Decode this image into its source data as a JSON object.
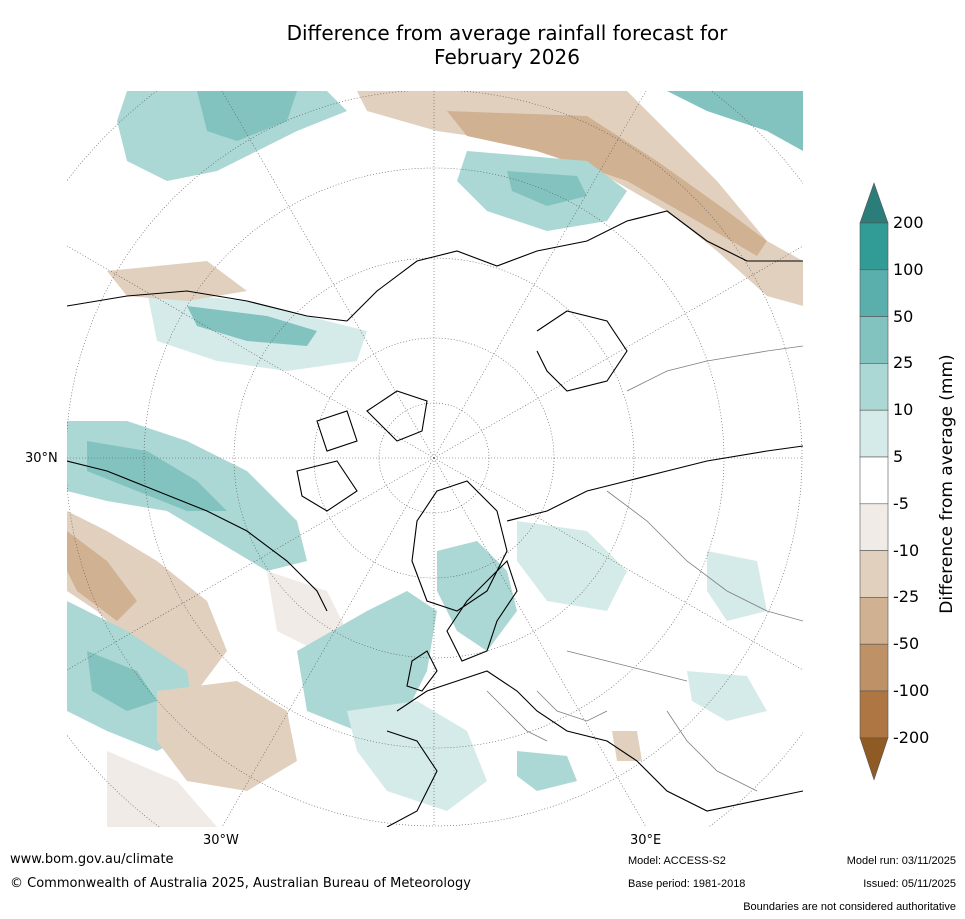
{
  "title": {
    "line1": "Difference from average rainfall forecast for",
    "line2": "February 2026"
  },
  "map": {
    "projection": "north polar stereographic",
    "graticule_labels": {
      "lon_left": "30°W",
      "lon_right": "30°E",
      "lat": "30°N"
    },
    "colors": {
      "ocean_background": "#ffffff",
      "coastline": "#000000",
      "borders": "#7f7f7f",
      "graticule": "#555555"
    }
  },
  "legend": {
    "title": "Difference from average (mm)",
    "tick_labels": [
      "200",
      "100",
      "50",
      "25",
      "10",
      "5",
      "-5",
      "-10",
      "-25",
      "-50",
      "-100",
      "-200"
    ],
    "bins": [
      {
        "range": "> 200",
        "color": "#2a7d79"
      },
      {
        "range": "100 to 200",
        "color": "#319b96"
      },
      {
        "range": "50 to 100",
        "color": "#5aaeab"
      },
      {
        "range": "25 to 50",
        "color": "#82c3c0"
      },
      {
        "range": "10 to 25",
        "color": "#abd7d5"
      },
      {
        "range": "5 to 10",
        "color": "#d5ebea"
      },
      {
        "range": "-5 to 5",
        "color": "#ffffff"
      },
      {
        "range": "-10 to -5",
        "color": "#f0ebe6"
      },
      {
        "range": "-25 to -10",
        "color": "#e2d0bf"
      },
      {
        "range": "-50 to -25",
        "color": "#d0b292"
      },
      {
        "range": "-100 to -50",
        "color": "#be9167"
      },
      {
        "range": "-200 to -100",
        "color": "#ae7642"
      },
      {
        "range": "< -200",
        "color": "#8f5a23"
      }
    ]
  },
  "footer": {
    "website": "www.bom.gov.au/climate",
    "copyright": "© Commonwealth of Australia 2025, Australian Bureau of Meteorology",
    "model": "Model: ACCESS-S2",
    "base_period": "Base period: 1981-2018",
    "model_run": "Model run: 03/11/2025",
    "issued": "Issued: 05/11/2025",
    "disclaimer": "Boundaries are not considered authoritative"
  }
}
